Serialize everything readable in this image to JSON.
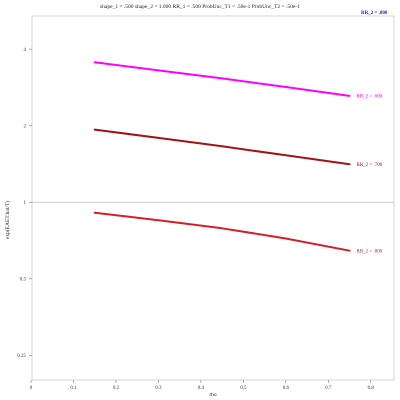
{
  "chart_data": {
    "type": "line",
    "title": "shape_1 = .500  shape_2 = 1.000  RR_1 = .500  ProbUnc_T1 = .50e-1  ProbUnc_T2 = .50e-1",
    "xlabel": "rho",
    "ylabel": "exp(EAET.hat/T)",
    "xlim": [
      0,
      0.85
    ],
    "ylim": [
      0.2,
      5.4
    ],
    "y_scale": "log",
    "x_ticks": [
      0,
      0.1,
      0.2,
      0.3,
      0.4,
      0.5,
      0.6,
      0.7,
      0.8
    ],
    "x_tick_labels": [
      "0",
      "0.1",
      "0.2",
      "0.3",
      "0.4",
      "0.5",
      "0.6",
      "0.7",
      "0.8"
    ],
    "y_ticks": [
      0.25,
      0.5,
      1,
      2,
      4
    ],
    "y_tick_labels": [
      "0.25",
      "0.5",
      "1",
      "2",
      "4"
    ],
    "reference_line_y": 1,
    "grid": false,
    "series": [
      {
        "name": "RR_2 = .600",
        "color": "#ff00ff",
        "x": [
          0.15,
          0.3,
          0.45,
          0.6,
          0.75
        ],
        "y": [
          3.55,
          3.3,
          3.07,
          2.84,
          2.62
        ]
      },
      {
        "name": "RR_2 = .700",
        "color": "#a01414",
        "x": [
          0.15,
          0.3,
          0.45,
          0.6,
          0.75
        ],
        "y": [
          1.93,
          1.79,
          1.66,
          1.53,
          1.41
        ]
      },
      {
        "name": "RR_2 = .800",
        "color": "#d0202a",
        "x": [
          0.15,
          0.3,
          0.45,
          0.6,
          0.75
        ],
        "y": [
          0.91,
          0.85,
          0.79,
          0.72,
          0.645
        ]
      }
    ],
    "top_right_label": {
      "text": "RR_2 = .800",
      "color": "#1a2aa8"
    }
  }
}
